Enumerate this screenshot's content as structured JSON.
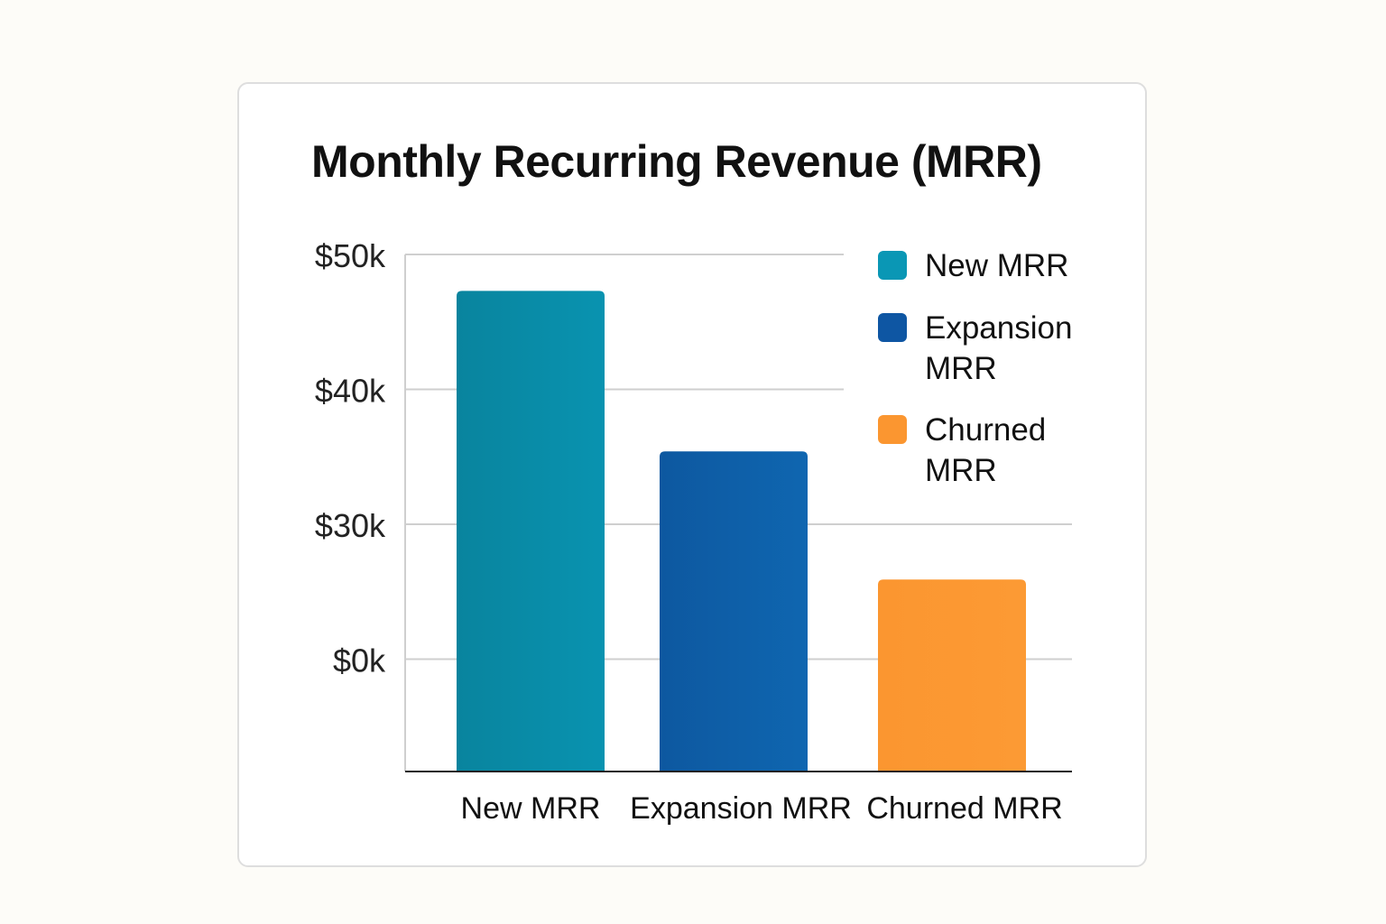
{
  "chart_data": {
    "type": "bar",
    "title": "Monthly Recurring Revenue (MRR)",
    "categories": [
      "New MRR",
      "Expansion MRR",
      "Churned MRR"
    ],
    "values": [
      47.3,
      35.4,
      25.9
    ],
    "unit": "$k",
    "y_ticks": [
      "$50k",
      "$40k",
      "$30k",
      "$0k"
    ],
    "ylim": [
      11.6,
      50
    ],
    "colors": [
      "#0a8ba3",
      "#0e5ea6",
      "#fb9630"
    ],
    "legend": {
      "placement": "top-right",
      "entries": [
        "New MRR",
        "Expansion MRR",
        "Churned MRR"
      ]
    },
    "grid": true,
    "xlabel": "",
    "ylabel": ""
  }
}
